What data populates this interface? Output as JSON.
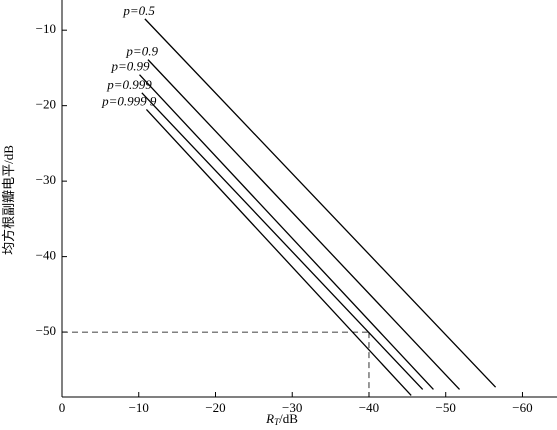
{
  "chart_data": {
    "type": "line",
    "x_label": [
      "R",
      "T",
      "/dB"
    ],
    "y_label": "均方根副瓣电平/dB",
    "xlim": [
      0,
      -64.5
    ],
    "ylim": [
      -58.6,
      -6
    ],
    "xticks": [
      0,
      {
        "value": -10,
        "label": "−10"
      },
      {
        "value": -20,
        "label": "−20"
      },
      {
        "value": -30,
        "label": "−30"
      },
      {
        "value": -40,
        "label": "−40"
      },
      {
        "value": -50,
        "label": "−50"
      },
      {
        "value": -60,
        "label": "−60"
      }
    ],
    "yticks": [
      {
        "value": -10,
        "label": "−10"
      },
      {
        "value": -20,
        "label": "−20"
      },
      {
        "value": -30,
        "label": "−30"
      },
      {
        "value": -40,
        "label": "−40"
      },
      {
        "value": -50,
        "label": "−50"
      }
    ],
    "series": [
      {
        "name": "p=0.5",
        "color": "#000000",
        "x": [
          -10.8,
          -56.5
        ],
        "values": [
          -8.5,
          -57.3
        ]
      },
      {
        "name": "p=0.9",
        "color": "#000000",
        "x": [
          -11.2,
          -51.8
        ],
        "values": [
          -13.9,
          -57.6
        ]
      },
      {
        "name": "p=0.99",
        "color": "#000000",
        "x": [
          -10.1,
          -48.4
        ],
        "values": [
          -15.9,
          -57.6
        ]
      },
      {
        "name": "p=0.999",
        "color": "#000000",
        "x": [
          -10.4,
          -47.0
        ],
        "values": [
          -18.3,
          -57.6
        ]
      },
      {
        "name": "p=0.999 9",
        "color": "#000000",
        "x": [
          -11.0,
          -45.5
        ],
        "values": [
          -20.5,
          -58.4
        ]
      }
    ],
    "reference": {
      "x": -40,
      "y": -50
    }
  }
}
